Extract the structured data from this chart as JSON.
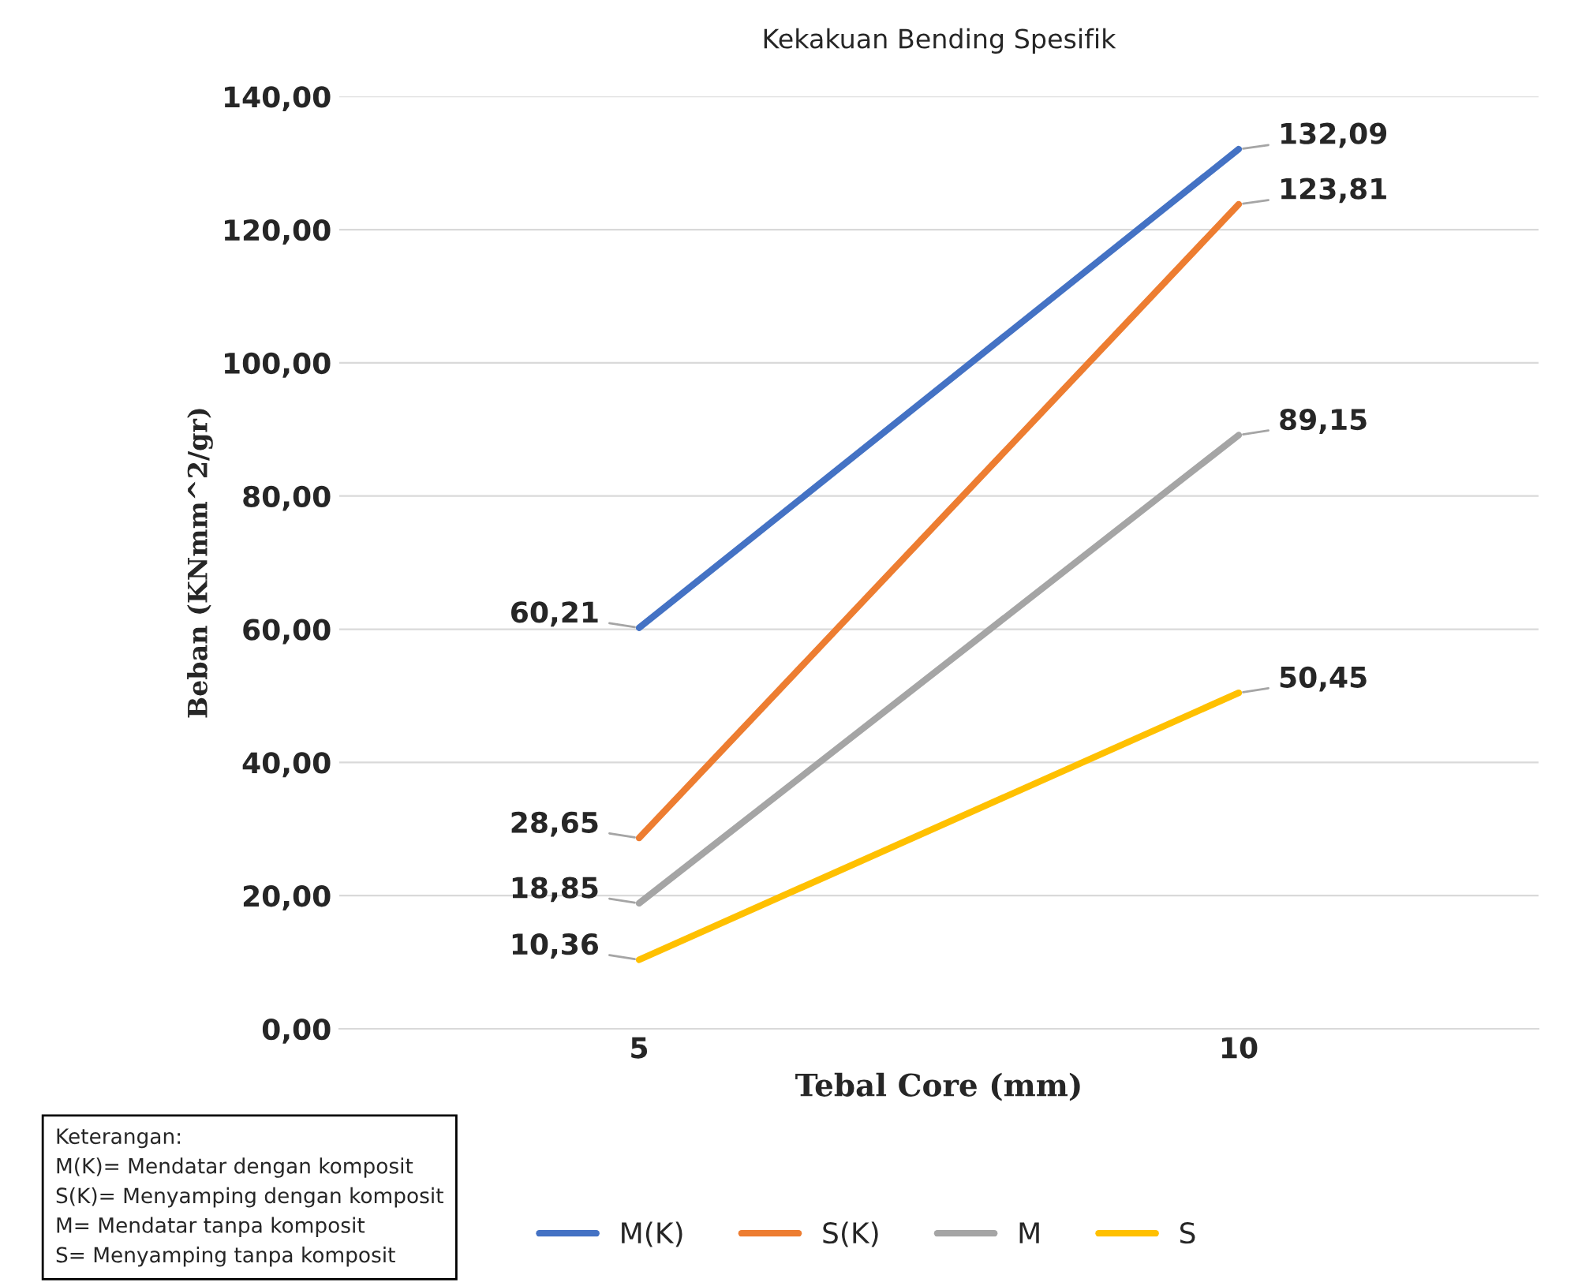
{
  "chart_data": {
    "type": "line",
    "title": "Kekakuan Bending Spesifik",
    "xlabel": "Tebal Core (mm)",
    "ylabel": "Beban (KNmm^2/gr)",
    "categories": [
      "5",
      "10"
    ],
    "series": [
      {
        "name": "M(K)",
        "color": "#4472c4",
        "values": [
          60.21,
          132.09
        ],
        "value_labels": [
          "60,21",
          "132,09"
        ]
      },
      {
        "name": "S(K)",
        "color": "#ed7d31",
        "values": [
          28.65,
          123.81
        ],
        "value_labels": [
          "28,65",
          "123,81"
        ]
      },
      {
        "name": "M",
        "color": "#a5a5a5",
        "values": [
          18.85,
          89.15
        ],
        "value_labels": [
          "18,85",
          "89,15"
        ]
      },
      {
        "name": "S",
        "color": "#ffc000",
        "values": [
          10.36,
          50.45
        ],
        "value_labels": [
          "10,36",
          "50,45"
        ]
      }
    ],
    "ylim": [
      0,
      140
    ],
    "yticks": [
      {
        "value": 0,
        "label": "0,00"
      },
      {
        "value": 20,
        "label": "20,00"
      },
      {
        "value": 40,
        "label": "40,00"
      },
      {
        "value": 60,
        "label": "60,00"
      },
      {
        "value": 80,
        "label": "80,00"
      },
      {
        "value": 100,
        "label": "100,00"
      },
      {
        "value": 120,
        "label": "120,00"
      },
      {
        "value": 140,
        "label": "140,00"
      }
    ],
    "grid": "y",
    "legend": "bottom",
    "marker": "none",
    "line_style": "solid",
    "annotations": [
      "Keterangan:\nM(K)= Mendatar dengan komposit\nS(K)= Menyamping dengan komposit\nM= Mendatar tanpa komposit\nS= Menyamping tanpa komposit"
    ]
  }
}
